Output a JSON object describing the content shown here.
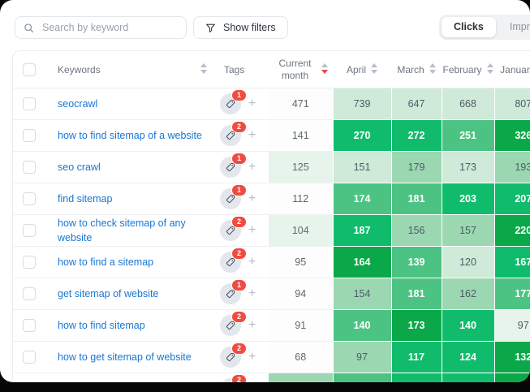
{
  "toolbar": {
    "search": {
      "placeholder": "Search by keyword"
    },
    "filters_button": "Show filters",
    "metric_toggle": {
      "selected": "Clicks",
      "options": [
        "Clicks",
        "Impressions"
      ]
    }
  },
  "table": {
    "header": {
      "keywords": "Keywords",
      "tags": "Tags",
      "current_month": "Current month",
      "months": [
        "April",
        "March",
        "February",
        "January"
      ],
      "sorted_by": "Current month",
      "sort_direction": "desc"
    },
    "rows": [
      {
        "keyword": "seocrawl",
        "tag_count": "1",
        "current": {
          "v": "471",
          "l": 0
        },
        "months": [
          {
            "v": "739",
            "l": 2
          },
          {
            "v": "647",
            "l": 2
          },
          {
            "v": "668",
            "l": 2
          },
          {
            "v": "807",
            "l": 2
          }
        ]
      },
      {
        "keyword": "how to find sitemap of a website",
        "tag_count": "2",
        "current": {
          "v": "141",
          "l": 0
        },
        "months": [
          {
            "v": "270",
            "l": 5
          },
          {
            "v": "272",
            "l": 5
          },
          {
            "v": "251",
            "l": 4
          },
          {
            "v": "326",
            "l": 6
          }
        ]
      },
      {
        "keyword": "seo crawl",
        "tag_count": "1",
        "current": {
          "v": "125",
          "l": 1
        },
        "months": [
          {
            "v": "151",
            "l": 2
          },
          {
            "v": "179",
            "l": 3
          },
          {
            "v": "173",
            "l": 2
          },
          {
            "v": "193",
            "l": 3
          }
        ]
      },
      {
        "keyword": "find sitemap",
        "tag_count": "1",
        "current": {
          "v": "112",
          "l": 0
        },
        "months": [
          {
            "v": "174",
            "l": 4
          },
          {
            "v": "181",
            "l": 4
          },
          {
            "v": "203",
            "l": 5
          },
          {
            "v": "207",
            "l": 5
          }
        ]
      },
      {
        "keyword": "how to check sitemap of any website",
        "tag_count": "2",
        "current": {
          "v": "104",
          "l": 1
        },
        "months": [
          {
            "v": "187",
            "l": 5
          },
          {
            "v": "156",
            "l": 3
          },
          {
            "v": "157",
            "l": 3
          },
          {
            "v": "220",
            "l": 6
          }
        ]
      },
      {
        "keyword": "how to find a sitemap",
        "tag_count": "2",
        "current": {
          "v": "95",
          "l": 0
        },
        "months": [
          {
            "v": "164",
            "l": 6
          },
          {
            "v": "139",
            "l": 4
          },
          {
            "v": "120",
            "l": 2
          },
          {
            "v": "167",
            "l": 5
          }
        ]
      },
      {
        "keyword": "get sitemap of website",
        "tag_count": "1",
        "current": {
          "v": "94",
          "l": 0
        },
        "months": [
          {
            "v": "154",
            "l": 3
          },
          {
            "v": "181",
            "l": 4
          },
          {
            "v": "162",
            "l": 3
          },
          {
            "v": "177",
            "l": 4
          }
        ]
      },
      {
        "keyword": "how to find sitemap",
        "tag_count": "2",
        "current": {
          "v": "91",
          "l": 0
        },
        "months": [
          {
            "v": "140",
            "l": 4
          },
          {
            "v": "173",
            "l": 6
          },
          {
            "v": "140",
            "l": 5
          },
          {
            "v": "97",
            "l": 1
          }
        ]
      },
      {
        "keyword": "how to get sitemap of website",
        "tag_count": "2",
        "current": {
          "v": "68",
          "l": 0
        },
        "months": [
          {
            "v": "97",
            "l": 3
          },
          {
            "v": "117",
            "l": 5
          },
          {
            "v": "124",
            "l": 5
          },
          {
            "v": "132",
            "l": 6
          }
        ]
      },
      {
        "keyword": "",
        "tag_count": "2",
        "partial": true,
        "current": {
          "v": "",
          "l": 3
        },
        "months": [
          {
            "v": "",
            "l": 4
          },
          {
            "v": "",
            "l": 5
          },
          {
            "v": "",
            "l": 5
          },
          {
            "v": "",
            "l": 6
          }
        ]
      }
    ]
  },
  "colors": {
    "heat_scale": [
      "#fcfdfc",
      "#e7f4eb",
      "#cfead8",
      "#9bd8b2",
      "#4cc382",
      "#10bc6c",
      "#0aa848"
    ],
    "heat_text_dark": "#4f5b66",
    "heat_text_light": "#ffffff",
    "badge": "#f14b40",
    "link": "#1877d2",
    "sort_active": "#e8454d",
    "sort_inactive": "#b7bec8"
  }
}
